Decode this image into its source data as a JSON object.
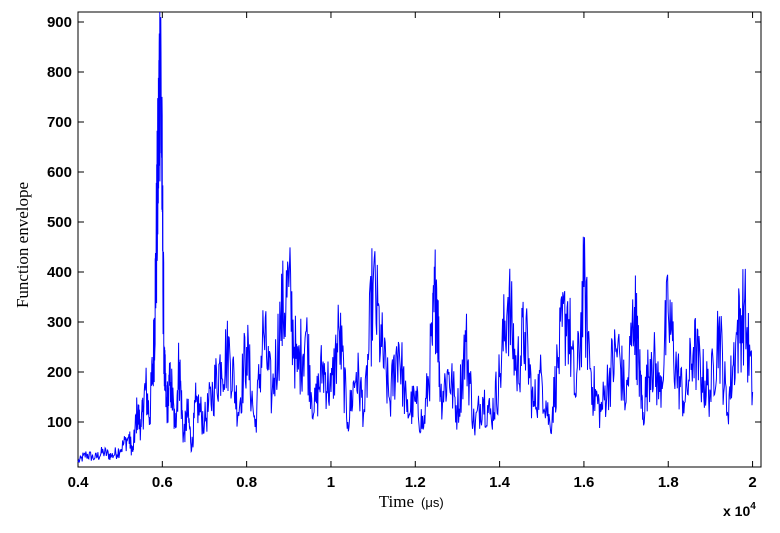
{
  "chart_data": {
    "type": "line",
    "title": "",
    "xlabel": "Time",
    "xlabel_unit": "(μs)",
    "ylabel": "Function envelope",
    "x_multiplier": "x 10",
    "x_multiplier_exp": "4",
    "xlim": [
      0.4,
      2.02
    ],
    "ylim": [
      10,
      920
    ],
    "x_ticks": [
      "0.4",
      "0.6",
      "0.8",
      "1",
      "1.2",
      "1.4",
      "1.6",
      "1.8",
      "2"
    ],
    "y_ticks": [
      "100",
      "200",
      "300",
      "400",
      "500",
      "600",
      "700",
      "800",
      "900"
    ],
    "grid": false,
    "legend": "none",
    "series_color": "#0000ff",
    "series": [
      {
        "x": [
          0.4,
          0.42,
          0.44,
          0.46,
          0.48,
          0.5,
          0.52,
          0.53,
          0.54,
          0.55,
          0.56,
          0.57,
          0.58,
          0.585,
          0.59,
          0.595,
          0.6,
          0.605,
          0.61,
          0.62,
          0.63,
          0.64,
          0.65,
          0.66,
          0.67,
          0.68,
          0.7,
          0.72,
          0.74,
          0.76,
          0.78,
          0.8,
          0.82,
          0.84,
          0.86,
          0.88,
          0.9,
          0.92,
          0.94,
          0.96,
          0.98,
          1.0,
          1.02,
          1.04,
          1.06,
          1.08,
          1.1,
          1.12,
          1.14,
          1.16,
          1.18,
          1.2,
          1.22,
          1.24,
          1.25,
          1.26,
          1.28,
          1.3,
          1.32,
          1.34,
          1.36,
          1.38,
          1.4,
          1.42,
          1.44,
          1.46,
          1.48,
          1.5,
          1.52,
          1.54,
          1.56,
          1.58,
          1.6,
          1.62,
          1.64,
          1.66,
          1.68,
          1.7,
          1.72,
          1.73,
          1.74,
          1.76,
          1.78,
          1.8,
          1.82,
          1.84,
          1.86,
          1.88,
          1.9,
          1.92,
          1.94,
          1.96,
          1.98,
          2.0
        ],
        "y": [
          20,
          35,
          28,
          40,
          32,
          45,
          70,
          40,
          120,
          90,
          170,
          110,
          250,
          420,
          600,
          910,
          520,
          200,
          130,
          180,
          90,
          220,
          70,
          120,
          50,
          140,
          100,
          160,
          220,
          240,
          120,
          250,
          90,
          280,
          150,
          300,
          370,
          200,
          280,
          120,
          210,
          160,
          280,
          100,
          200,
          120,
          375,
          250,
          140,
          260,
          120,
          140,
          90,
          260,
          385,
          150,
          200,
          120,
          260,
          90,
          150,
          110,
          190,
          350,
          200,
          280,
          130,
          190,
          90,
          230,
          330,
          150,
          370,
          170,
          120,
          190,
          250,
          140,
          330,
          220,
          120,
          240,
          160,
          320,
          200,
          140,
          250,
          190,
          160,
          290,
          120,
          260,
          330,
          160
        ]
      }
    ]
  }
}
